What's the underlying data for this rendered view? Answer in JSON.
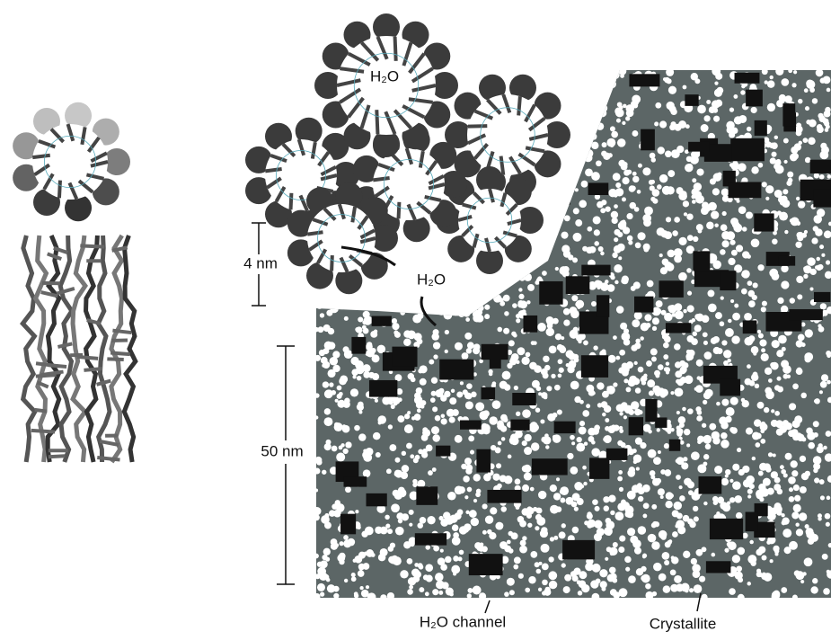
{
  "labels": {
    "micelle_water": "H₂O",
    "scale_small": "4 nm",
    "water_path": "H₂O",
    "scale_large": "50 nm",
    "channel": "H₂O channel",
    "crystallite": "Crystallite"
  }
}
